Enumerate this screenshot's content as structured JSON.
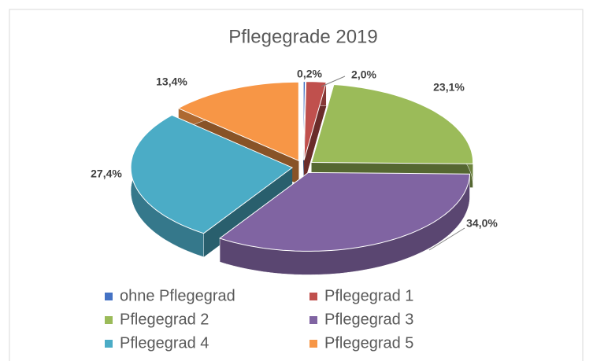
{
  "chart_data": {
    "type": "pie3d",
    "title": "Pflegegrade 2019",
    "categories": [
      "ohne Pflegegrad",
      "Pflegegrad 1",
      "Pflegegrad 2",
      "Pflegegrad 3",
      "Pflegegrad 4",
      "Pflegegrad 5"
    ],
    "values": [
      0.2,
      2.0,
      23.1,
      34.0,
      27.4,
      13.4
    ],
    "value_labels": [
      "0,2%",
      "2,0%",
      "23,1%",
      "34,0%",
      "27,4%",
      "13,4%"
    ],
    "colors": [
      "#4472c4",
      "#c0504d",
      "#9bbb59",
      "#8064a2",
      "#4bacc6",
      "#f79646"
    ],
    "legend": "bottom"
  }
}
